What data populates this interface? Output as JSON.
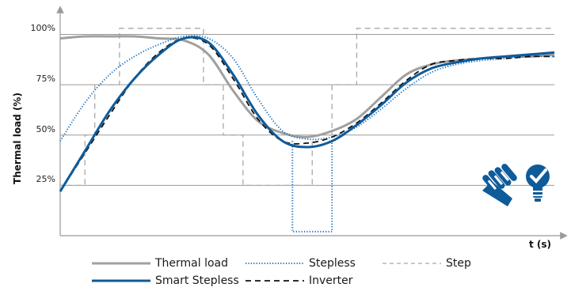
{
  "chart_data": {
    "type": "line",
    "title": "",
    "xlabel": "t (s)",
    "ylabel": "Thermal load (%)",
    "ylim": [
      0,
      110
    ],
    "y_ticks": [
      {
        "value": 25,
        "label": "25%"
      },
      {
        "value": 50,
        "label": "50%"
      },
      {
        "value": 75,
        "label": "75%"
      },
      {
        "value": 100,
        "label": "100%"
      }
    ],
    "grid": true,
    "legend_position": "bottom",
    "x": [
      0,
      5,
      10,
      15,
      20,
      25,
      30,
      35,
      40,
      45,
      50,
      55,
      60,
      65,
      70,
      75,
      80,
      85,
      90,
      95,
      100
    ],
    "series": [
      {
        "name": "Thermal load",
        "color": "#a0a0a0",
        "style": "solid",
        "values": [
          98,
          99,
          99,
          99,
          98,
          97,
          90,
          72,
          57,
          51,
          49,
          52,
          58,
          69,
          80,
          85,
          87,
          88,
          89,
          89,
          90
        ]
      },
      {
        "name": "Smart Stepless",
        "color": "#0e5b9a",
        "style": "solid",
        "values": [
          22,
          42,
          62,
          78,
          90,
          98,
          96,
          80,
          60,
          47,
          44,
          47,
          55,
          65,
          76,
          83,
          86,
          88,
          89,
          90,
          91
        ]
      },
      {
        "name": "Stepless",
        "color": "#1a6fc0",
        "style": "dotted",
        "values": [
          47,
          66,
          80,
          89,
          95,
          99,
          98,
          88,
          68,
          52,
          48,
          49,
          54,
          63,
          73,
          81,
          85,
          87,
          88,
          89,
          89
        ]
      },
      {
        "name": "Inverter",
        "color": "#111111",
        "style": "dashed",
        "values": [
          22,
          41,
          60,
          78,
          91,
          98,
          95,
          78,
          58,
          47,
          46,
          49,
          56,
          66,
          77,
          85,
          87,
          88,
          88,
          89,
          89
        ]
      }
    ],
    "step_series": {
      "name": "Step",
      "color": "#a8a8a8",
      "style": "dashed",
      "points": [
        [
          0,
          0
        ],
        [
          0,
          25
        ],
        [
          5,
          25
        ],
        [
          5,
          50
        ],
        [
          7,
          50
        ],
        [
          7,
          75
        ],
        [
          12,
          75
        ],
        [
          12,
          103
        ],
        [
          29,
          103
        ],
        [
          29,
          75
        ],
        [
          33,
          75
        ],
        [
          33,
          50
        ],
        [
          37,
          50
        ],
        [
          37,
          25
        ],
        [
          51,
          25
        ],
        [
          51,
          50
        ],
        [
          55,
          50
        ],
        [
          55,
          75
        ],
        [
          60,
          75
        ],
        [
          60,
          103
        ],
        [
          100,
          103
        ]
      ]
    },
    "stepless_segment": {
      "name": "Stepless",
      "color": "#1a6fc0",
      "style": "dotted",
      "points": [
        [
          47,
          47
        ],
        [
          47,
          2
        ],
        [
          55,
          2
        ],
        [
          55,
          48
        ]
      ]
    }
  },
  "legend": {
    "thermal_load": {
      "label": "Thermal load",
      "color": "#a0a0a0"
    },
    "stepless": {
      "label": "Stepless",
      "color": "#1a6fc0"
    },
    "step": {
      "label": "Step",
      "color": "#a8a8a8"
    },
    "smart_stepless": {
      "label": "Smart Stepless",
      "color": "#0e5b9a"
    },
    "inverter": {
      "label": "Inverter",
      "color": "#111111"
    }
  },
  "logo": {
    "icon": "coil-and-bulb-logo",
    "color": "#0e5b9a"
  }
}
